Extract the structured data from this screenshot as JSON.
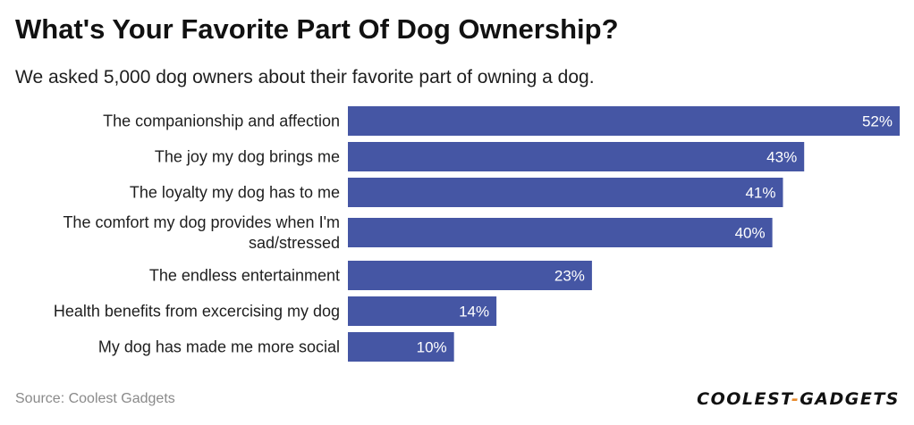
{
  "header": {
    "title": "What's Your Favorite Part Of Dog Ownership?",
    "subtitle": "We asked 5,000 dog owners about their favorite part of owning a dog."
  },
  "footer": {
    "source": "Source: Coolest Gadgets",
    "logo_left": "COOLEST",
    "logo_dash": "-",
    "logo_right": "GADGETS"
  },
  "colors": {
    "bar": "#4556a4",
    "bar_label": "#ffffff",
    "category_label": "#1e1e1e"
  },
  "chart_data": {
    "type": "bar",
    "orientation": "horizontal",
    "title": "What's Your Favorite Part Of Dog Ownership?",
    "subtitle": "We asked 5,000 dog owners about their favorite part of owning a dog.",
    "categories": [
      "The companionship and affection",
      "The joy my dog brings me",
      "The loyalty my dog has to me",
      "The comfort my dog provides when I'm sad/stressed",
      "The endless entertainment",
      "Health benefits from excercising my dog",
      "My dog has made me more social"
    ],
    "category_lines": [
      [
        "The companionship and affection"
      ],
      [
        "The joy my dog brings me"
      ],
      [
        "The loyalty my dog has to me"
      ],
      [
        "The comfort my dog provides when I'm",
        "sad/stressed"
      ],
      [
        "The endless entertainment"
      ],
      [
        "Health benefits from excercising my dog"
      ],
      [
        "My dog has made me more social"
      ]
    ],
    "values": [
      52,
      43,
      41,
      40,
      23,
      14,
      10
    ],
    "value_labels": [
      "52%",
      "43%",
      "41%",
      "40%",
      "23%",
      "14%",
      "10%"
    ],
    "unit": "%",
    "xlim": [
      0,
      52
    ],
    "grid": false,
    "legend": "none"
  }
}
